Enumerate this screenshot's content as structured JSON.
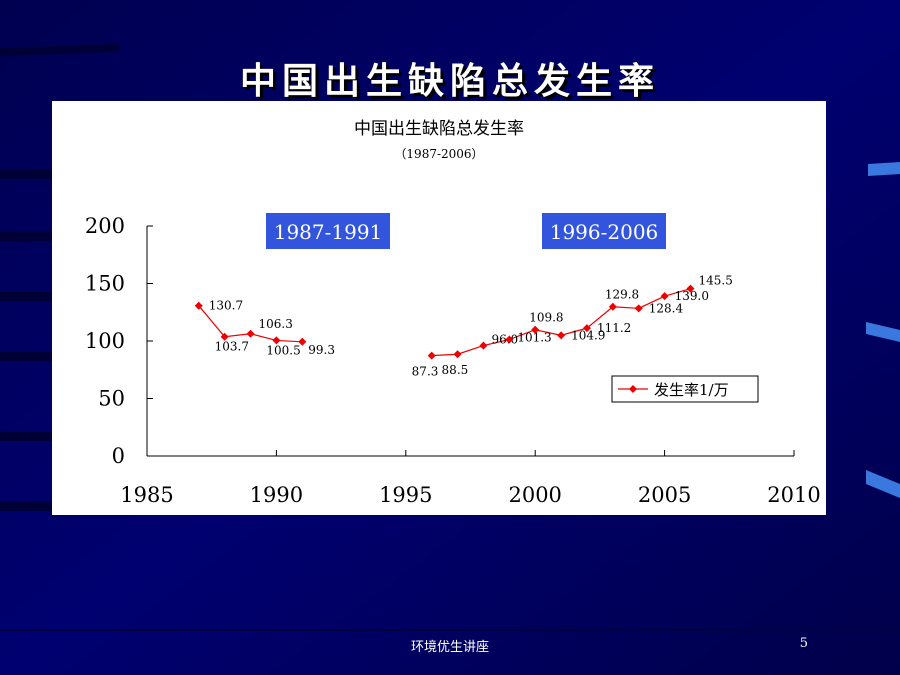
{
  "slide": {
    "title": "中国出生缺陷总发生率",
    "footer": "环境优生讲座",
    "page_number": "5"
  },
  "colors": {
    "background": "#000060",
    "series": "#ee0000",
    "period_box": "#3355dd",
    "stripe": "#3a78e0"
  },
  "chart_data": {
    "type": "line",
    "title": "中国出生缺陷总发生率",
    "subtitle": "（1987-2006）",
    "xlim": [
      1985,
      2010
    ],
    "ylim": [
      0,
      200
    ],
    "xticks": [
      1985,
      1990,
      1995,
      2000,
      2005,
      2010
    ],
    "yticks": [
      0,
      50,
      100,
      150,
      200
    ],
    "grid": false,
    "legend": {
      "position": "right",
      "entries": [
        "发生率1/万"
      ]
    },
    "annotations": [
      "1987-1991",
      "1996-2006"
    ],
    "series": [
      {
        "name": "发生率1/万",
        "segments": [
          {
            "x": [
              1987,
              1988,
              1989,
              1990,
              1991
            ],
            "y": [
              130.7,
              103.7,
              106.3,
              100.5,
              99.3
            ],
            "labels": [
              "130.7",
              "103.7",
              "106.3",
              "100.5",
              "99.3"
            ]
          },
          {
            "x": [
              1996,
              1997,
              1998,
              1999,
              2000,
              2001,
              2002,
              2003,
              2004,
              2005,
              2006
            ],
            "y": [
              87.3,
              88.5,
              96.0,
              101.3,
              109.8,
              104.9,
              111.2,
              129.8,
              128.4,
              139.0,
              145.5
            ],
            "labels": [
              "87.3",
              "88.5",
              "96.0",
              "101.3",
              "109.8",
              "104.9",
              "111.2",
              "129.8",
              "128.4",
              "139.0",
              "145.5"
            ]
          }
        ]
      }
    ]
  }
}
